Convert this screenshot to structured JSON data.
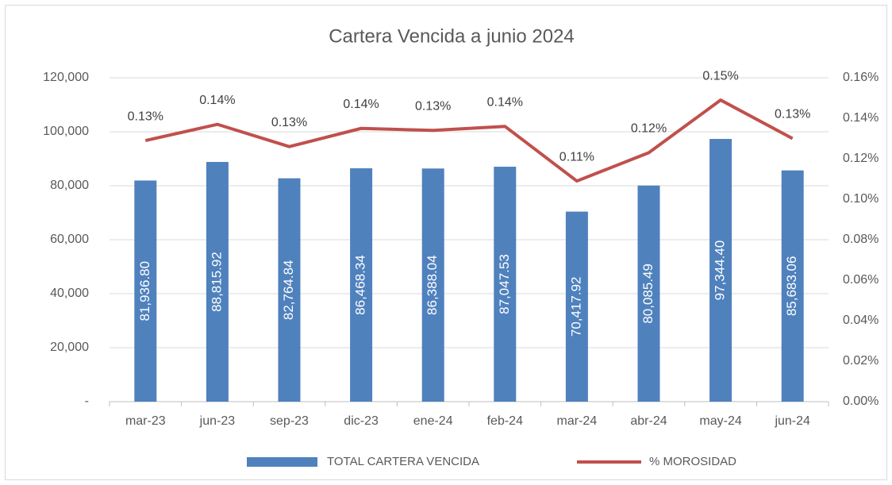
{
  "chart_data": {
    "type": "bar_line",
    "title": "Cartera Vencida a junio 2024",
    "categories": [
      "mar-23",
      "jun-23",
      "sep-23",
      "dic-23",
      "ene-24",
      "feb-24",
      "mar-24",
      "abr-24",
      "may-24",
      "jun-24"
    ],
    "series": [
      {
        "name": "TOTAL CARTERA VENCIDA",
        "type": "bar",
        "color": "#4f81bd",
        "values": [
          81936.8,
          88815.92,
          82764.84,
          86468.34,
          86388.04,
          87047.53,
          70417.92,
          80085.49,
          97344.4,
          85683.06
        ],
        "value_labels": [
          "81,936.80",
          "88,815.92",
          "82,764.84",
          "86,468.34",
          "86,388.04",
          "87,047.53",
          "70,417.92",
          "80,085.49",
          "97,344.40",
          "85,683.06"
        ]
      },
      {
        "name": "% MOROSIDAD",
        "type": "line",
        "axis": "y2",
        "color": "#c0504d",
        "values": [
          0.129,
          0.137,
          0.126,
          0.135,
          0.134,
          0.136,
          0.109,
          0.123,
          0.149,
          0.13
        ],
        "value_labels": [
          "0.13%",
          "0.14%",
          "0.13%",
          "0.14%",
          "0.13%",
          "0.14%",
          "0.11%",
          "0.12%",
          "0.15%",
          "0.13%"
        ]
      }
    ],
    "ylim": [
      0,
      120000
    ],
    "yticks": [
      {
        "value": 0,
        "label": "-"
      },
      {
        "value": 20000,
        "label": "20,000"
      },
      {
        "value": 40000,
        "label": "40,000"
      },
      {
        "value": 60000,
        "label": "60,000"
      },
      {
        "value": 80000,
        "label": "80,000"
      },
      {
        "value": 100000,
        "label": "100,000"
      },
      {
        "value": 120000,
        "label": "120,000"
      }
    ],
    "y2lim": [
      0,
      0.16
    ],
    "y2ticks": [
      {
        "value": 0,
        "label": "0.00%"
      },
      {
        "value": 0.02,
        "label": "0.02%"
      },
      {
        "value": 0.04,
        "label": "0.04%"
      },
      {
        "value": 0.06,
        "label": "0.06%"
      },
      {
        "value": 0.08,
        "label": "0.08%"
      },
      {
        "value": 0.1,
        "label": "0.10%"
      },
      {
        "value": 0.12,
        "label": "0.12%"
      },
      {
        "value": 0.14,
        "label": "0.14%"
      },
      {
        "value": 0.16,
        "label": "0.16%"
      }
    ],
    "legend": "bottom"
  }
}
